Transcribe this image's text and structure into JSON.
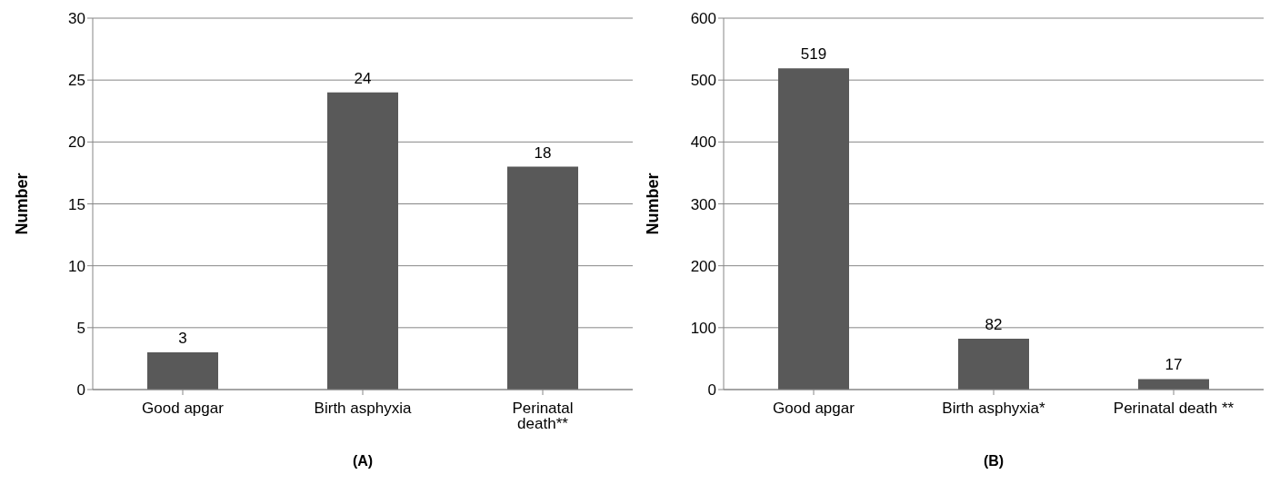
{
  "chart_data": [
    {
      "type": "bar",
      "xlabel": "(A)",
      "ylabel": "Number",
      "categories": [
        "Good apgar",
        "Birth asphyxia",
        "Perinatal death**"
      ],
      "values": [
        3,
        24,
        18
      ],
      "color": "#595959",
      "ylim": [
        0,
        30
      ],
      "yticks": [
        0,
        5,
        10,
        15,
        20,
        25,
        30
      ],
      "grid": "y",
      "data_labels": true,
      "legend": false
    },
    {
      "type": "bar",
      "xlabel": "(B)",
      "ylabel": "Number",
      "categories": [
        "Good apgar",
        "Birth asphyxia*",
        "Perinatal death **"
      ],
      "values": [
        519,
        82,
        17
      ],
      "color": "#595959",
      "ylim": [
        0,
        600
      ],
      "yticks": [
        0,
        100,
        200,
        300,
        400,
        500,
        600
      ],
      "grid": "y",
      "data_labels": true,
      "legend": false
    }
  ]
}
